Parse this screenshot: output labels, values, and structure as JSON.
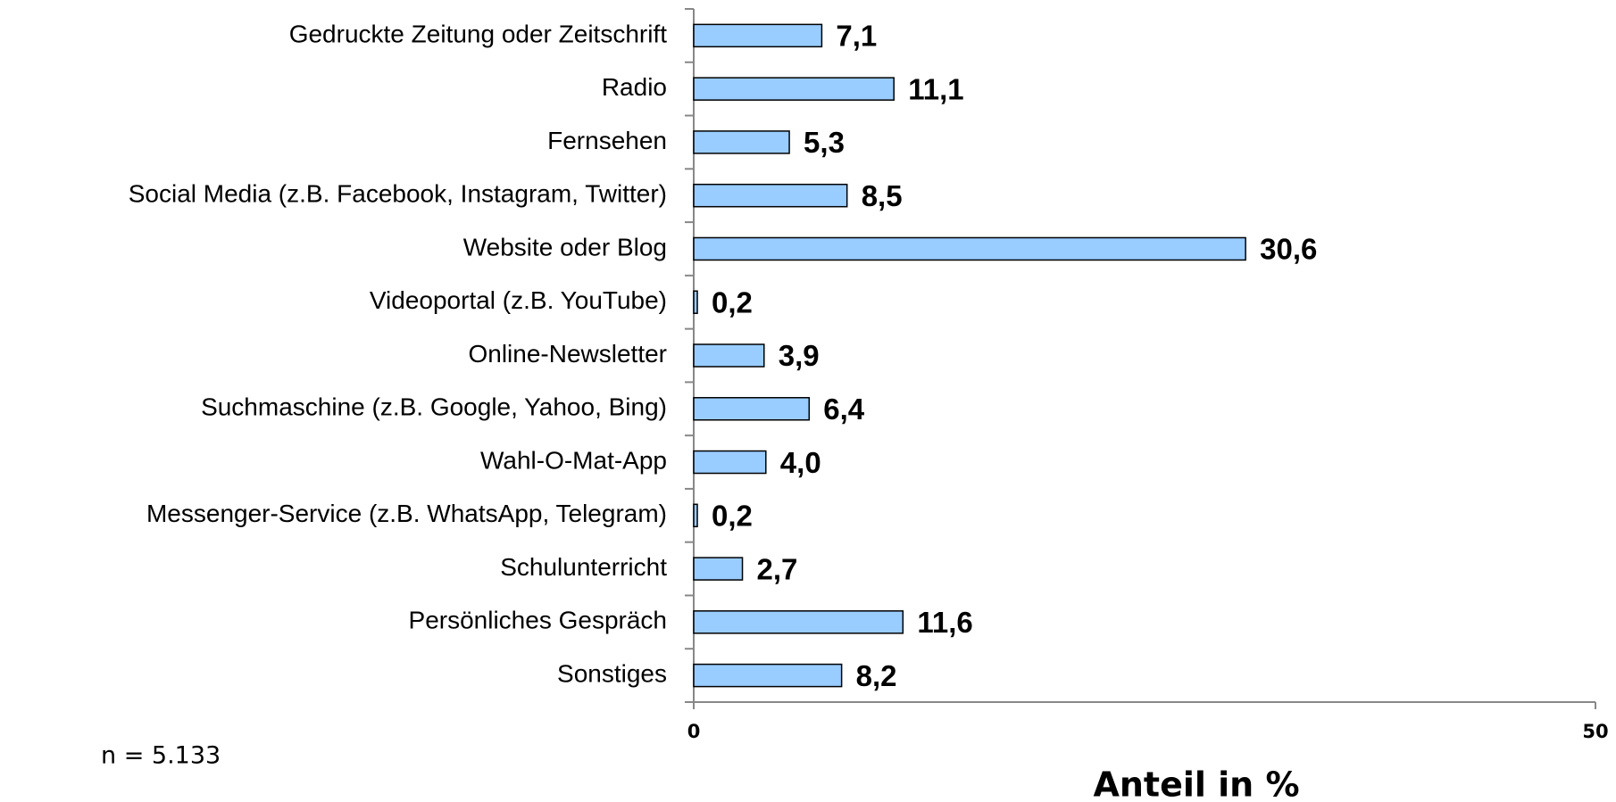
{
  "chart_data": {
    "type": "bar",
    "orientation": "horizontal",
    "categories": [
      "Gedruckte Zeitung oder Zeitschrift",
      "Radio",
      "Fernsehen",
      "Social Media (z.B. Facebook, Instagram, Twitter)",
      "Website oder Blog",
      "Videoportal (z.B. YouTube)",
      "Online-Newsletter",
      "Suchmaschine (z.B. Google, Yahoo, Bing)",
      "Wahl-O-Mat-App",
      "Messenger-Service (z.B. WhatsApp, Telegram)",
      "Schulunterricht",
      "Persönliches Gespräch",
      "Sonstiges"
    ],
    "values": [
      7.1,
      11.1,
      5.3,
      8.5,
      30.6,
      0.2,
      3.9,
      6.4,
      4.0,
      0.2,
      2.7,
      11.6,
      8.2
    ],
    "value_labels": [
      "7,1",
      "11,1",
      "5,3",
      "8,5",
      "30,6",
      "0,2",
      "3,9",
      "6,4",
      "4,0",
      "0,2",
      "2,7",
      "11,6",
      "8,2"
    ],
    "color": "#99ccff",
    "xlim": [
      0,
      50
    ],
    "xticks": [
      0,
      50
    ],
    "xlabel": "Anteil in %",
    "note": "n = 5.133"
  }
}
